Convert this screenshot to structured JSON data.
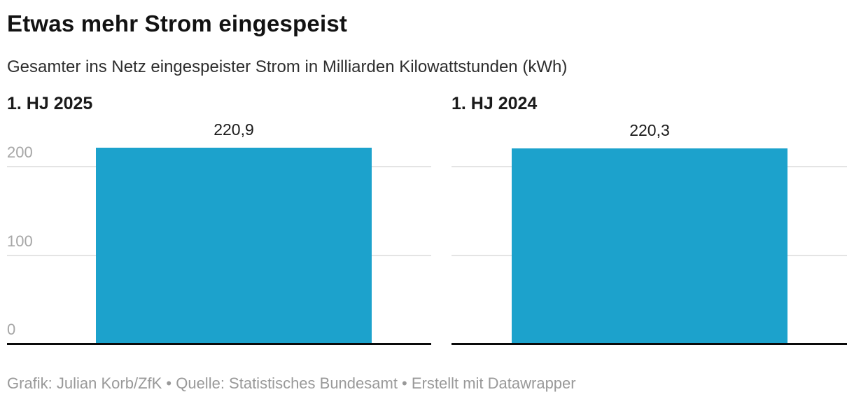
{
  "header": {
    "title": "Etwas mehr Strom eingespeist",
    "subtitle": "Gesamter ins Netz eingespeister Strom in Milliarden Kilowattstunden (kWh)"
  },
  "footer": {
    "credit": "Grafik: Julian Korb/ZfK • Quelle: Statistisches Bundesamt • Erstellt mit Datawrapper"
  },
  "chart_data": {
    "type": "bar",
    "categories": [
      "1. HJ 2025",
      "1. HJ 2024"
    ],
    "panels": [
      {
        "label": "1. HJ 2025",
        "value": 220.9,
        "value_label": "220,9"
      },
      {
        "label": "1. HJ 2024",
        "value": 220.3,
        "value_label": "220,3"
      }
    ],
    "title": "Etwas mehr Strom eingespeist",
    "xlabel": "",
    "ylabel": "",
    "ylim": [
      0,
      250
    ],
    "yticks": [
      0,
      100,
      200
    ],
    "grid": true,
    "legend": "none",
    "bar_color": "#1ca2cc"
  },
  "colors": {
    "bar": "#1ca2cc",
    "gridline": "#e4e4e4",
    "baseline": "#0a0a0a",
    "tick_text": "#a6a6a6",
    "title_text": "#121212",
    "footer_text": "#999999"
  }
}
